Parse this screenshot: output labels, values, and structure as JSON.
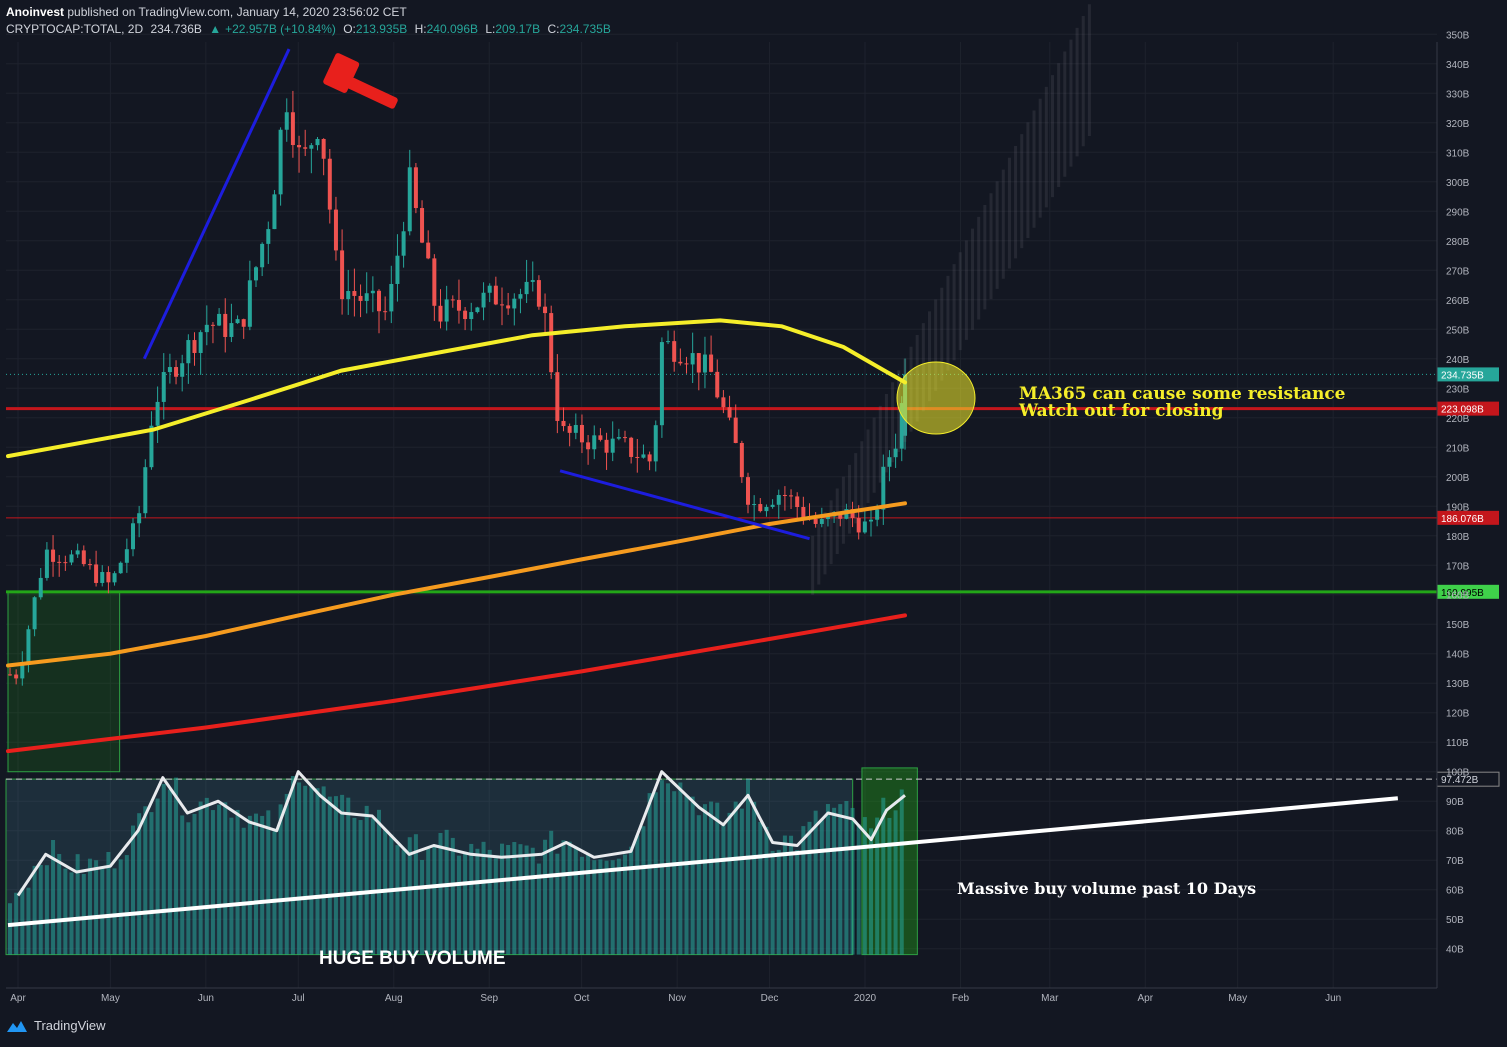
{
  "header": {
    "author": "Anoinvest",
    "published": "published on TradingView.com, January 14, 2020 23:56:02 CET",
    "symbol": "CRYPTOCAP:TOTAL, 2D",
    "last": "234.736B",
    "change": "+22.957B (+10.84%)",
    "o_label": "O:",
    "open": "213.935B",
    "h_label": "H:",
    "high": "240.096B",
    "l_label": "L:",
    "low": "209.17B",
    "c_label": "C:",
    "close": "234.735B"
  },
  "footer": {
    "brand": "TradingView"
  },
  "colors": {
    "background": "#131722",
    "up": "#26a69a",
    "down": "#ef5350",
    "ma_yellow": "#f5ee2a",
    "ma_orange": "#f59b1f",
    "ma_red": "#e8201c",
    "support_green": "#23a618",
    "resistance_red": "#c4161c",
    "trend_blue": "#1d1dde",
    "annotation_yellow": "#f5ee2a"
  },
  "chart_data": {
    "type": "candlestick",
    "title": "",
    "xlabel": "",
    "ylabel": "",
    "y_unit": "B",
    "ylim": [
      38,
      356
    ],
    "y_ticks": [
      40,
      50,
      60,
      70,
      80,
      90,
      100,
      110,
      120,
      130,
      140,
      150,
      160,
      170,
      180,
      190,
      200,
      210,
      220,
      230,
      240,
      250,
      260,
      270,
      280,
      290,
      300,
      310,
      320,
      330,
      340,
      350
    ],
    "y_tick_labels": [
      "40B",
      "50B",
      "60B",
      "70B",
      "80B",
      "90B",
      "100B",
      "110B",
      "120B",
      "130B",
      "140B",
      "150B",
      "160B",
      "170B",
      "180B",
      "190B",
      "200B",
      "210B",
      "220B",
      "230B",
      "240B",
      "250B",
      "260B",
      "270B",
      "280B",
      "290B",
      "300B",
      "310B",
      "320B",
      "330B",
      "340B",
      "350B"
    ],
    "x_ticks": [
      "Apr",
      "May",
      "Jun",
      "Jul",
      "Aug",
      "Sep",
      "Oct",
      "Nov",
      "Dec",
      "2020",
      "Feb",
      "Mar",
      "Apr",
      "May",
      "Jun"
    ],
    "price_path": [
      [
        "2019-04-01",
        133
      ],
      [
        "2019-04-10",
        175
      ],
      [
        "2019-04-20",
        172
      ],
      [
        "2019-05-01",
        163
      ],
      [
        "2019-05-10",
        185
      ],
      [
        "2019-05-15",
        225
      ],
      [
        "2019-05-22",
        238
      ],
      [
        "2019-06-01",
        252
      ],
      [
        "2019-06-12",
        250
      ],
      [
        "2019-06-22",
        290
      ],
      [
        "2019-06-27",
        330
      ],
      [
        "2019-07-02",
        305
      ],
      [
        "2019-07-08",
        322
      ],
      [
        "2019-07-14",
        265
      ],
      [
        "2019-07-22",
        260
      ],
      [
        "2019-07-30",
        255
      ],
      [
        "2019-08-06",
        300
      ],
      [
        "2019-08-15",
        255
      ],
      [
        "2019-08-25",
        258
      ],
      [
        "2019-09-05",
        262
      ],
      [
        "2019-09-18",
        262
      ],
      [
        "2019-09-24",
        215
      ],
      [
        "2019-10-05",
        212
      ],
      [
        "2019-10-15",
        210
      ],
      [
        "2019-10-24",
        205
      ],
      [
        "2019-10-27",
        245
      ],
      [
        "2019-11-03",
        243
      ],
      [
        "2019-11-12",
        235
      ],
      [
        "2019-11-20",
        210
      ],
      [
        "2019-11-25",
        190
      ],
      [
        "2019-12-05",
        195
      ],
      [
        "2019-12-17",
        183
      ],
      [
        "2019-12-25",
        188
      ],
      [
        "2020-01-03",
        182
      ],
      [
        "2020-01-08",
        205
      ],
      [
        "2020-01-12",
        215
      ],
      [
        "2020-01-14",
        234.7
      ]
    ],
    "series": [
      {
        "name": "MA365",
        "color": "#f5ee2a",
        "points": [
          [
            "2019-04-01",
            207
          ],
          [
            "2019-05-15",
            216
          ],
          [
            "2019-06-15",
            226
          ],
          [
            "2019-07-15",
            236
          ],
          [
            "2019-08-15",
            242
          ],
          [
            "2019-09-15",
            248
          ],
          [
            "2019-10-15",
            251
          ],
          [
            "2019-11-15",
            253
          ],
          [
            "2019-12-05",
            251
          ],
          [
            "2019-12-25",
            244
          ],
          [
            "2020-01-14",
            232
          ]
        ]
      },
      {
        "color": "#f59b1f",
        "points": [
          [
            "2019-04-01",
            136
          ],
          [
            "2019-05-01",
            140
          ],
          [
            "2019-06-01",
            146
          ],
          [
            "2019-07-01",
            153
          ],
          [
            "2019-08-01",
            160
          ],
          [
            "2019-09-01",
            166
          ],
          [
            "2019-10-01",
            172
          ],
          [
            "2019-11-01",
            178
          ],
          [
            "2019-12-01",
            184
          ],
          [
            "2020-01-14",
            191
          ]
        ]
      },
      {
        "color": "#e8201c",
        "points": [
          [
            "2019-04-01",
            107
          ],
          [
            "2019-06-01",
            115
          ],
          [
            "2019-08-01",
            124
          ],
          [
            "2019-10-01",
            134
          ],
          [
            "2019-12-01",
            145
          ],
          [
            "2020-01-14",
            153
          ]
        ]
      }
    ],
    "horizontal_lines": [
      {
        "value": 223.098,
        "label": "223.098B",
        "color": "#c4161c"
      },
      {
        "value": 186.076,
        "label": "186.076B",
        "color": "#c4161c"
      },
      {
        "value": 160.995,
        "label": "160.995B",
        "color": "#23a618"
      },
      {
        "value": 97.472,
        "label": "97.472B",
        "color": "#cccccc"
      }
    ],
    "last_price_label": "234.735B",
    "volume_indicator": {
      "series": [
        [
          "2019-04-01",
          58
        ],
        [
          "2019-04-10",
          72
        ],
        [
          "2019-04-20",
          66
        ],
        [
          "2019-05-01",
          68
        ],
        [
          "2019-05-10",
          80
        ],
        [
          "2019-05-18",
          98
        ],
        [
          "2019-05-26",
          86
        ],
        [
          "2019-06-05",
          90
        ],
        [
          "2019-06-15",
          83
        ],
        [
          "2019-06-24",
          80
        ],
        [
          "2019-07-01",
          100
        ],
        [
          "2019-07-08",
          92
        ],
        [
          "2019-07-15",
          86
        ],
        [
          "2019-07-25",
          85
        ],
        [
          "2019-08-06",
          72
        ],
        [
          "2019-08-14",
          75
        ],
        [
          "2019-08-26",
          72
        ],
        [
          "2019-09-05",
          71
        ],
        [
          "2019-09-18",
          72
        ],
        [
          "2019-09-26",
          76
        ],
        [
          "2019-10-05",
          71
        ],
        [
          "2019-10-17",
          73
        ],
        [
          "2019-10-27",
          100
        ],
        [
          "2019-11-08",
          88
        ],
        [
          "2019-11-16",
          82
        ],
        [
          "2019-11-24",
          92
        ],
        [
          "2019-12-02",
          76
        ],
        [
          "2019-12-10",
          75
        ],
        [
          "2019-12-20",
          86
        ],
        [
          "2019-12-28",
          84
        ],
        [
          "2020-01-03",
          77
        ],
        [
          "2020-01-08",
          87
        ],
        [
          "2020-01-14",
          92
        ]
      ],
      "trendline": [
        [
          "2019-04-01",
          48
        ],
        [
          "2020-06-22",
          91
        ]
      ]
    },
    "annotations": [
      {
        "text": "MA365 can cause some resistance"
      },
      {
        "text": "Watch out for closing"
      },
      {
        "text": "HUGE BUY VOLUME"
      },
      {
        "text": "Massive buy volume past 10 Days"
      }
    ],
    "grid": true,
    "legend": "none"
  }
}
